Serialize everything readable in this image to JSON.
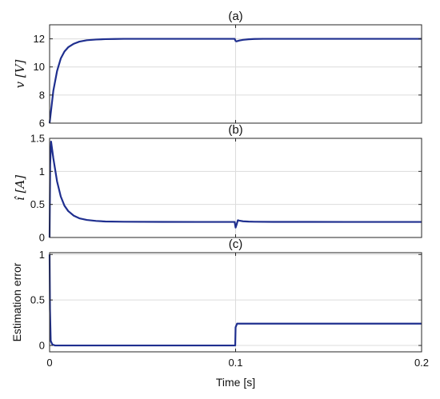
{
  "chart_data": [
    {
      "type": "line",
      "title": "(a)",
      "ylabel": "v [V]",
      "xlabel": "",
      "xlim": [
        0,
        0.2
      ],
      "ylim": [
        6,
        13
      ],
      "xticks": [
        0,
        0.1,
        0.2
      ],
      "xtick_labels": [
        "",
        "",
        ""
      ],
      "yticks": [
        6,
        8,
        10,
        12
      ],
      "ytick_labels": [
        "6",
        "8",
        "10",
        "12"
      ],
      "grid": true,
      "series": [
        {
          "color": "#1f2f8f",
          "x": [
            0,
            0.002,
            0.004,
            0.006,
            0.008,
            0.01,
            0.013,
            0.016,
            0.02,
            0.025,
            0.03,
            0.035,
            0.04,
            0.05,
            0.06,
            0.08,
            0.0995,
            0.1,
            0.1005,
            0.102,
            0.104,
            0.107,
            0.11,
            0.115,
            0.12,
            0.14,
            0.16,
            0.18,
            0.2
          ],
          "y": [
            6,
            8.3,
            9.7,
            10.6,
            11.1,
            11.4,
            11.65,
            11.8,
            11.9,
            11.95,
            11.98,
            11.99,
            12,
            12,
            12,
            12,
            12,
            11.85,
            11.82,
            11.88,
            11.93,
            11.97,
            11.99,
            12,
            12,
            12,
            12,
            12,
            12
          ]
        }
      ]
    },
    {
      "type": "line",
      "title": "(b)",
      "ylabel": "î [A]",
      "xlabel": "",
      "xlim": [
        0,
        0.2
      ],
      "ylim": [
        0,
        1.5
      ],
      "xticks": [
        0,
        0.1,
        0.2
      ],
      "xtick_labels": [
        "",
        "",
        ""
      ],
      "yticks": [
        0,
        0.5,
        1,
        1.5
      ],
      "ytick_labels": [
        "0",
        "0.5",
        "1",
        "1.5"
      ],
      "grid": true,
      "series": [
        {
          "color": "#1f2f8f",
          "x": [
            0,
            0.0003,
            0.0008,
            0.002,
            0.004,
            0.006,
            0.008,
            0.01,
            0.013,
            0.016,
            0.02,
            0.025,
            0.03,
            0.04,
            0.06,
            0.08,
            0.0995,
            0.1,
            0.1006,
            0.1012,
            0.102,
            0.104,
            0.107,
            0.11,
            0.12,
            0.14,
            0.16,
            0.18,
            0.2
          ],
          "y": [
            0,
            1.1,
            1.45,
            1.2,
            0.85,
            0.62,
            0.48,
            0.4,
            0.33,
            0.29,
            0.265,
            0.25,
            0.242,
            0.238,
            0.236,
            0.235,
            0.235,
            0.15,
            0.2,
            0.26,
            0.255,
            0.245,
            0.24,
            0.238,
            0.236,
            0.236,
            0.235,
            0.235,
            0.235
          ]
        }
      ]
    },
    {
      "type": "line",
      "title": "(c)",
      "ylabel": "Estimation error",
      "xlabel": "Time [s]",
      "xlim": [
        0,
        0.2
      ],
      "ylim": [
        -0.07,
        1.02
      ],
      "xticks": [
        0,
        0.1,
        0.2
      ],
      "xtick_labels": [
        "0",
        "0.1",
        "0.2"
      ],
      "yticks": [
        0,
        0.5,
        1
      ],
      "ytick_labels": [
        "0",
        "0.5",
        "1"
      ],
      "grid": true,
      "series": [
        {
          "color": "#1f2f8f",
          "x": [
            0,
            0.0002,
            0.0006,
            0.0015,
            0.003,
            0.02,
            0.05,
            0.08,
            0.0998,
            0.1,
            0.1008,
            0.102,
            0.11,
            0.13,
            0.15,
            0.17,
            0.19,
            0.2
          ],
          "y": [
            1,
            0.4,
            0.05,
            0.01,
            0,
            0,
            0,
            0,
            0,
            0.2,
            0.24,
            0.24,
            0.24,
            0.24,
            0.24,
            0.24,
            0.24,
            0.24
          ]
        }
      ]
    }
  ]
}
